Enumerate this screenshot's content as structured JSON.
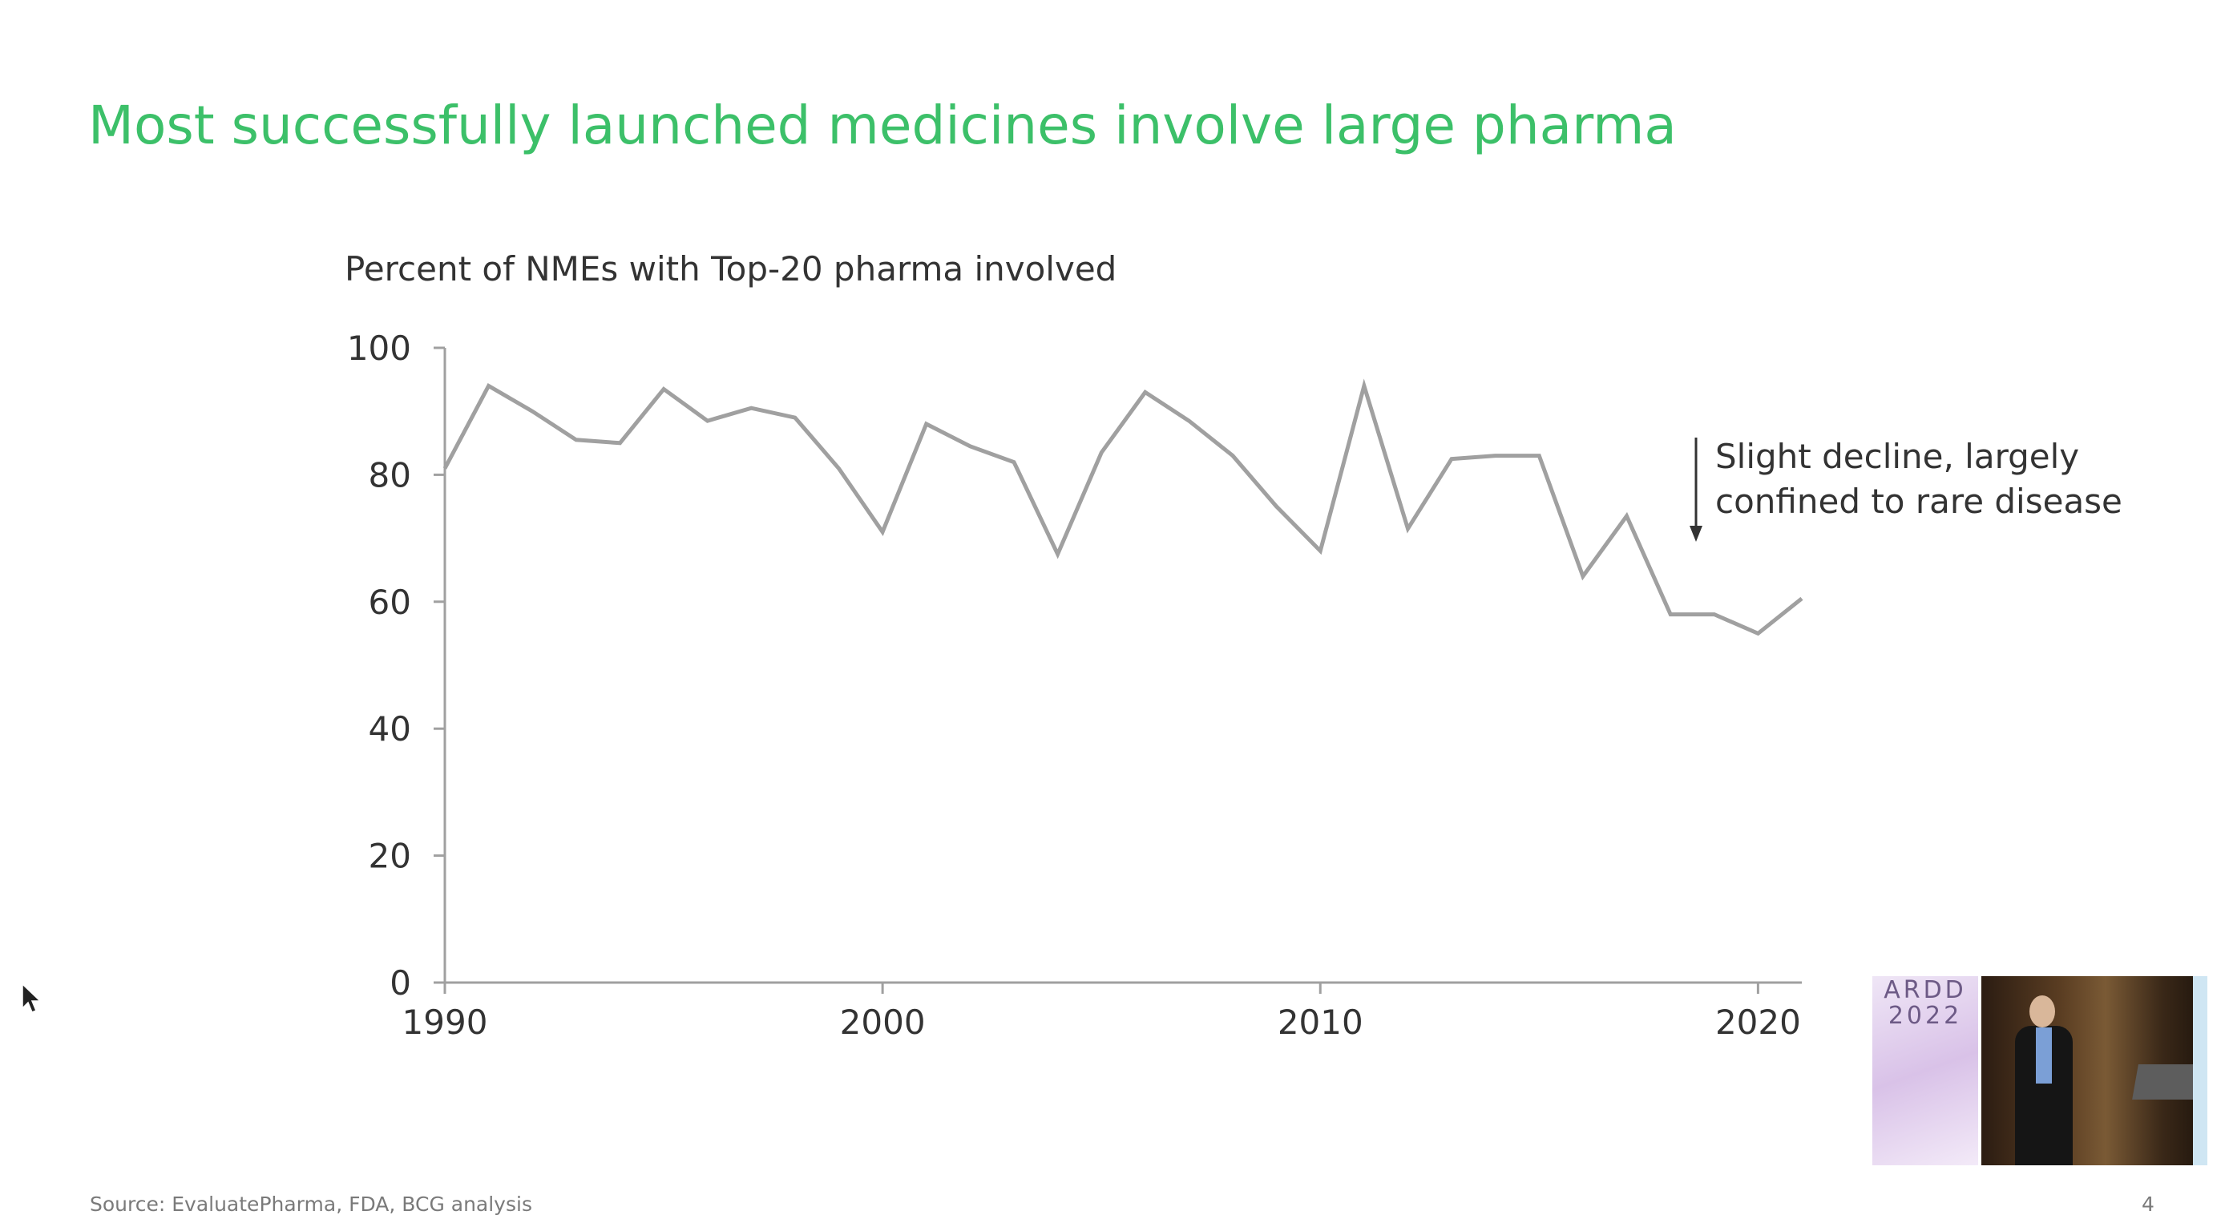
{
  "title": "Most successfully launched medicines involve large pharma",
  "source": "Source: EvaluatePharma, FDA, BCG analysis",
  "slide_number": "4",
  "event_logo": "ARDD 2022",
  "colors": {
    "title": "#3cc069",
    "line": "#a0a0a0",
    "axis": "#a0a0a0",
    "text": "#333333",
    "muted": "#7a7a7a"
  },
  "chart_data": {
    "type": "line",
    "title": "Percent of NMEs with Top-20 pharma involved",
    "xlabel": "",
    "ylabel": "",
    "xlim": [
      1990,
      2021
    ],
    "ylim": [
      0,
      100
    ],
    "x_ticks": [
      1990,
      2000,
      2010,
      2020
    ],
    "y_ticks": [
      0,
      20,
      40,
      60,
      80,
      100
    ],
    "grid": false,
    "legend": "none",
    "series": [
      {
        "x": [
          1990,
          1991,
          1992,
          1993,
          1994,
          1995,
          1996,
          1997,
          1998,
          1999,
          2000,
          2001,
          2002,
          2003,
          2004,
          2005,
          2006,
          2007,
          2008,
          2009,
          2010,
          2011,
          2012,
          2013,
          2014,
          2015,
          2016,
          2017,
          2018,
          2019,
          2020,
          2021
        ],
        "values": [
          81,
          94,
          90,
          85.5,
          85,
          93.5,
          88.5,
          90.5,
          89,
          81,
          71,
          88,
          84.5,
          82,
          67.5,
          83.5,
          93,
          88.5,
          83,
          75,
          68,
          94,
          71.5,
          82.5,
          83,
          83,
          64,
          73.5,
          58,
          58,
          55,
          60.5
        ]
      }
    ],
    "annotation": {
      "text_lines": [
        "Slight decline, largely",
        "confined to rare disease"
      ],
      "arrow": "down"
    }
  }
}
